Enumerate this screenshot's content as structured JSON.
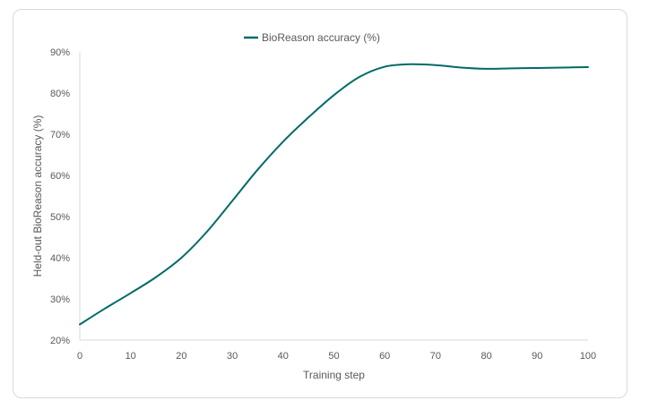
{
  "chart_data": {
    "type": "line",
    "title": "",
    "xlabel": "Training step",
    "ylabel": "Held-out BioReason accuracy (%)",
    "xlim": [
      0,
      100
    ],
    "ylim": [
      20,
      90
    ],
    "x_ticks": [
      0,
      10,
      20,
      30,
      40,
      50,
      60,
      70,
      80,
      90,
      100
    ],
    "x_tick_labels": [
      "0",
      "10",
      "20",
      "30",
      "40",
      "50",
      "60",
      "70",
      "80",
      "90",
      "100"
    ],
    "y_ticks": [
      20,
      30,
      40,
      50,
      60,
      70,
      80,
      90
    ],
    "y_tick_labels": [
      "20%",
      "30%",
      "40%",
      "50%",
      "60%",
      "70%",
      "80%",
      "90%"
    ],
    "grid": false,
    "legend_position": "top-center",
    "series": [
      {
        "name": "BioReason accuracy (%)",
        "color": "#006b66",
        "x": [
          0,
          5,
          10,
          15,
          20,
          25,
          30,
          35,
          40,
          45,
          50,
          55,
          60,
          65,
          70,
          75,
          80,
          85,
          90,
          95,
          100
        ],
        "y": [
          23.8,
          27.7,
          31.4,
          35.3,
          40.0,
          46.3,
          53.8,
          61.4,
          68.2,
          74.1,
          79.5,
          83.9,
          86.4,
          87.0,
          86.8,
          86.2,
          85.9,
          86.0,
          86.1,
          86.2,
          86.3
        ]
      }
    ]
  }
}
